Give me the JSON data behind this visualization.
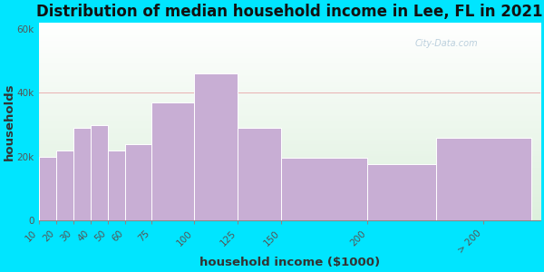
{
  "title": "Distribution of median household income in Lee, FL in 2021",
  "xlabel": "household income ($1000)",
  "ylabel": "households",
  "bar_labels": [
    "10",
    "20",
    "30",
    "40",
    "50",
    "60",
    "75",
    "100",
    "125",
    "150",
    "200",
    "> 200"
  ],
  "bar_values": [
    20000,
    22000,
    29000,
    30000,
    22000,
    24000,
    37000,
    46000,
    29000,
    19500,
    17500,
    26000
  ],
  "bar_color": "#c8aed4",
  "bar_edge_color": "#ffffff",
  "background_outer": "#00e5ff",
  "background_inner_top": "#ddf0dd",
  "background_inner_bottom": "#ffffff",
  "title_fontsize": 12,
  "axis_label_fontsize": 9.5,
  "tick_fontsize": 7.5,
  "ytick_labels": [
    "0",
    "20k",
    "40k",
    "60k"
  ],
  "ytick_values": [
    0,
    20000,
    40000,
    60000
  ],
  "ylim": [
    0,
    62000
  ],
  "watermark": "City-Data.com",
  "left_edges": [
    10,
    20,
    30,
    40,
    50,
    60,
    75,
    100,
    125,
    150,
    200,
    240
  ],
  "widths": [
    10,
    10,
    10,
    10,
    10,
    15,
    25,
    25,
    25,
    50,
    40,
    55
  ],
  "xtick_positions": [
    10,
    20,
    30,
    40,
    50,
    60,
    75,
    100,
    125,
    150,
    200,
    267
  ],
  "xtick_labels": [
    "10",
    "20",
    "30",
    "40",
    "50",
    "60",
    "75",
    "100",
    "125",
    "150",
    "200",
    "> 200"
  ],
  "xlim": [
    10,
    300
  ]
}
